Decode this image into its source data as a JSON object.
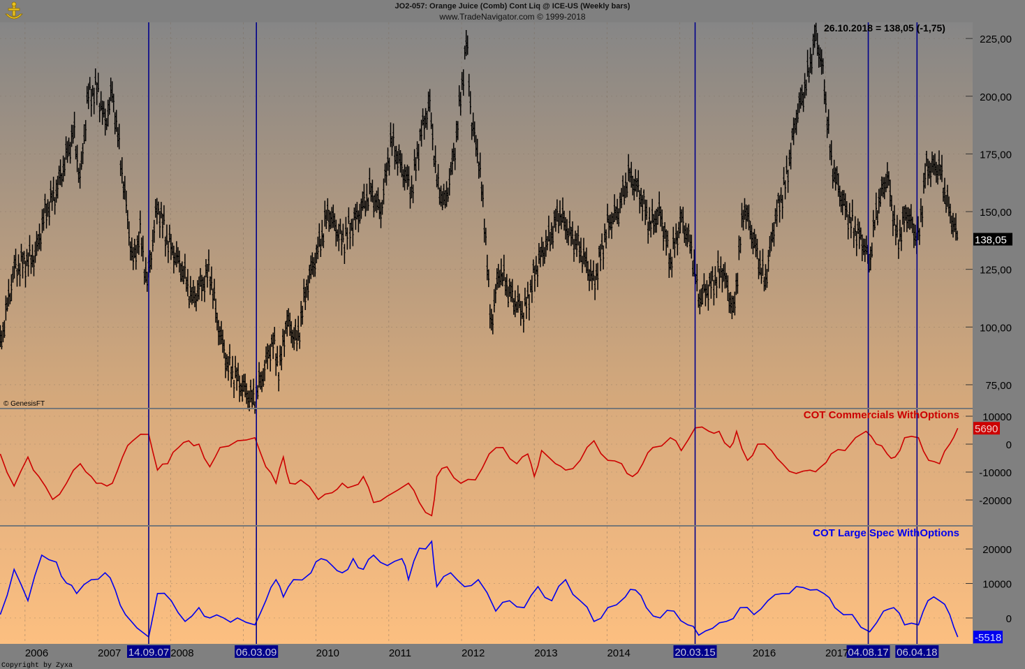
{
  "header": {
    "title": "JO2-057:  Orange Juice (Comb) Cont Liq @ ICE-US  (Weekly bars)",
    "subtitle": "www.TradeNavigator.com © 1999-2018",
    "last_quote": "26.10.2018 = 138,05 (-1,75)",
    "data_credit": "© GenesisFT",
    "copyright": "Copyright by Zyxa",
    "logo": "anchor-logo"
  },
  "colors": {
    "price": "#000000",
    "commercials": "#cc0000",
    "large_spec": "#0000ee",
    "marker_line": "#00008b",
    "axis_bg": "#808080"
  },
  "chart_data": [
    {
      "type": "bar",
      "name": "price",
      "title": "JO2-057:  Orange Juice (Comb) Cont Liq @ ICE-US  (Weekly bars)",
      "ylim": [
        65,
        232
      ],
      "y_ticks": [
        "225,00",
        "200,00",
        "175,00",
        "150,00",
        "125,00",
        "100,00",
        "75,00"
      ],
      "y_tick_values": [
        225,
        200,
        175,
        150,
        125,
        100,
        75
      ],
      "last_value_label": "138,05",
      "points": [
        [
          2005.66,
          92
        ],
        [
          2005.85,
          125
        ],
        [
          2006.14,
          131
        ],
        [
          2006.28,
          150
        ],
        [
          2006.43,
          159
        ],
        [
          2006.67,
          185
        ],
        [
          2006.76,
          163
        ],
        [
          2006.86,
          200
        ],
        [
          2007.0,
          203
        ],
        [
          2007.1,
          188
        ],
        [
          2007.2,
          202
        ],
        [
          2007.34,
          166
        ],
        [
          2007.48,
          128
        ],
        [
          2007.58,
          141
        ],
        [
          2007.68,
          119
        ],
        [
          2007.82,
          153
        ],
        [
          2007.96,
          137
        ],
        [
          2008.16,
          125
        ],
        [
          2008.3,
          112
        ],
        [
          2008.44,
          119
        ],
        [
          2008.54,
          125
        ],
        [
          2008.64,
          103
        ],
        [
          2008.78,
          84
        ],
        [
          2008.97,
          75
        ],
        [
          2009.13,
          68
        ],
        [
          2009.26,
          78
        ],
        [
          2009.4,
          94
        ],
        [
          2009.5,
          81
        ],
        [
          2009.59,
          103
        ],
        [
          2009.74,
          94
        ],
        [
          2009.88,
          119
        ],
        [
          2010.03,
          134
        ],
        [
          2010.17,
          150
        ],
        [
          2010.36,
          137
        ],
        [
          2010.55,
          147
        ],
        [
          2010.75,
          159
        ],
        [
          2010.89,
          150
        ],
        [
          2011.03,
          181
        ],
        [
          2011.18,
          169
        ],
        [
          2011.32,
          159
        ],
        [
          2011.42,
          181
        ],
        [
          2011.56,
          197
        ],
        [
          2011.66,
          163
        ],
        [
          2011.77,
          153
        ],
        [
          2011.9,
          175
        ],
        [
          2011.99,
          200
        ],
        [
          2012.07,
          225
        ],
        [
          2012.14,
          188
        ],
        [
          2012.23,
          175
        ],
        [
          2012.33,
          141
        ],
        [
          2012.4,
          100
        ],
        [
          2012.52,
          125
        ],
        [
          2012.71,
          112
        ],
        [
          2012.86,
          106
        ],
        [
          2013.05,
          128
        ],
        [
          2013.24,
          141
        ],
        [
          2013.34,
          150
        ],
        [
          2013.48,
          141
        ],
        [
          2013.63,
          134
        ],
        [
          2013.82,
          119
        ],
        [
          2014.01,
          144
        ],
        [
          2014.15,
          150
        ],
        [
          2014.3,
          166
        ],
        [
          2014.44,
          159
        ],
        [
          2014.59,
          144
        ],
        [
          2014.73,
          150
        ],
        [
          2014.87,
          128
        ],
        [
          2015.02,
          147
        ],
        [
          2015.16,
          134
        ],
        [
          2015.26,
          112
        ],
        [
          2015.45,
          119
        ],
        [
          2015.59,
          125
        ],
        [
          2015.74,
          106
        ],
        [
          2015.88,
          153
        ],
        [
          2016.02,
          137
        ],
        [
          2016.17,
          119
        ],
        [
          2016.31,
          147
        ],
        [
          2016.46,
          163
        ],
        [
          2016.6,
          191
        ],
        [
          2016.74,
          206
        ],
        [
          2016.87,
          227
        ],
        [
          2016.97,
          210
        ],
        [
          2017.08,
          172
        ],
        [
          2017.22,
          156
        ],
        [
          2017.37,
          144
        ],
        [
          2017.51,
          137
        ],
        [
          2017.61,
          128
        ],
        [
          2017.7,
          150
        ],
        [
          2017.85,
          166
        ],
        [
          2017.99,
          137
        ],
        [
          2018.12,
          150
        ],
        [
          2018.28,
          137
        ],
        [
          2018.38,
          169
        ],
        [
          2018.57,
          169
        ],
        [
          2018.68,
          153
        ],
        [
          2018.82,
          138.05
        ]
      ]
    },
    {
      "type": "line",
      "name": "COT Commercials WithOptions",
      "ylim": [
        -29000,
        12500
      ],
      "y_ticks": [
        "10000",
        "0",
        "-10000",
        "-20000"
      ],
      "y_tick_values": [
        10000,
        0,
        -10000,
        -20000
      ],
      "last_value_label": "5690",
      "points": [
        [
          2005.66,
          -3500
        ],
        [
          2005.85,
          -15000
        ],
        [
          2006.04,
          -4600
        ],
        [
          2006.19,
          -11600
        ],
        [
          2006.38,
          -19800
        ],
        [
          2006.57,
          -14000
        ],
        [
          2006.76,
          -7000
        ],
        [
          2006.91,
          -11600
        ],
        [
          2007.05,
          -14000
        ],
        [
          2007.2,
          -14000
        ],
        [
          2007.34,
          -4600
        ],
        [
          2007.48,
          1200
        ],
        [
          2007.7,
          3500
        ],
        [
          2007.82,
          -9300
        ],
        [
          2007.96,
          -7000
        ],
        [
          2008.11,
          -1200
        ],
        [
          2008.25,
          1200
        ],
        [
          2008.39,
          0
        ],
        [
          2008.54,
          -8100
        ],
        [
          2008.68,
          -1200
        ],
        [
          2008.92,
          1200
        ],
        [
          2009.16,
          2300
        ],
        [
          2009.31,
          -8100
        ],
        [
          2009.45,
          -14000
        ],
        [
          2009.55,
          -4600
        ],
        [
          2009.64,
          -14000
        ],
        [
          2009.79,
          -12800
        ],
        [
          2010.03,
          -19800
        ],
        [
          2010.22,
          -17400
        ],
        [
          2010.36,
          -14000
        ],
        [
          2010.51,
          -15000
        ],
        [
          2010.65,
          -11600
        ],
        [
          2010.79,
          -20900
        ],
        [
          2010.98,
          -18600
        ],
        [
          2011.27,
          -14000
        ],
        [
          2011.42,
          -20900
        ],
        [
          2011.59,
          -25600
        ],
        [
          2011.66,
          -11600
        ],
        [
          2011.8,
          -8100
        ],
        [
          2011.99,
          -14000
        ],
        [
          2012.19,
          -12800
        ],
        [
          2012.38,
          -3500
        ],
        [
          2012.57,
          -1200
        ],
        [
          2012.76,
          -7000
        ],
        [
          2012.91,
          -3500
        ],
        [
          2013.0,
          -11600
        ],
        [
          2013.1,
          -2300
        ],
        [
          2013.29,
          -7000
        ],
        [
          2013.43,
          -9300
        ],
        [
          2013.63,
          -5800
        ],
        [
          2013.82,
          1200
        ],
        [
          2014.01,
          -5800
        ],
        [
          2014.2,
          -7000
        ],
        [
          2014.35,
          -11600
        ],
        [
          2014.49,
          -7000
        ],
        [
          2014.63,
          -1200
        ],
        [
          2014.87,
          2300
        ],
        [
          2015.02,
          -2300
        ],
        [
          2015.21,
          5800
        ],
        [
          2015.4,
          4600
        ],
        [
          2015.54,
          4600
        ],
        [
          2015.69,
          -1200
        ],
        [
          2015.78,
          4600
        ],
        [
          2015.93,
          -5800
        ],
        [
          2016.07,
          0
        ],
        [
          2016.26,
          -2300
        ],
        [
          2016.41,
          -7000
        ],
        [
          2016.6,
          -10500
        ],
        [
          2016.79,
          -9300
        ],
        [
          2016.94,
          -8100
        ],
        [
          2017.08,
          -3500
        ],
        [
          2017.27,
          -2300
        ],
        [
          2017.56,
          4600
        ],
        [
          2017.7,
          0
        ],
        [
          2017.85,
          -3500
        ],
        [
          2017.96,
          -4600
        ],
        [
          2018.09,
          2300
        ],
        [
          2018.28,
          2300
        ],
        [
          2018.42,
          -5800
        ],
        [
          2018.57,
          -7000
        ],
        [
          2018.71,
          0
        ],
        [
          2018.82,
          5690
        ]
      ]
    },
    {
      "type": "line",
      "name": "COT Large Spec WithOptions",
      "ylim": [
        -7500,
        26500
      ],
      "y_ticks": [
        "20000",
        "10000",
        "0"
      ],
      "y_tick_values": [
        20000,
        10000,
        0
      ],
      "last_value_label": "-5518",
      "points": [
        [
          2005.66,
          1000
        ],
        [
          2005.85,
          14100
        ],
        [
          2006.04,
          5000
        ],
        [
          2006.23,
          18200
        ],
        [
          2006.43,
          16200
        ],
        [
          2006.57,
          10100
        ],
        [
          2006.71,
          7100
        ],
        [
          2006.91,
          11100
        ],
        [
          2007.1,
          13100
        ],
        [
          2007.24,
          8100
        ],
        [
          2007.38,
          1000
        ],
        [
          2007.7,
          -5500
        ],
        [
          2007.82,
          7100
        ],
        [
          2008.01,
          5000
        ],
        [
          2008.2,
          -1000
        ],
        [
          2008.39,
          3000
        ],
        [
          2008.54,
          0
        ],
        [
          2008.73,
          0
        ],
        [
          2008.92,
          0
        ],
        [
          2009.16,
          -2000
        ],
        [
          2009.31,
          5000
        ],
        [
          2009.45,
          11100
        ],
        [
          2009.55,
          6100
        ],
        [
          2009.69,
          11100
        ],
        [
          2009.93,
          13100
        ],
        [
          2010.07,
          17200
        ],
        [
          2010.22,
          15200
        ],
        [
          2010.36,
          13100
        ],
        [
          2010.51,
          17200
        ],
        [
          2010.65,
          14100
        ],
        [
          2010.79,
          18200
        ],
        [
          2010.98,
          15200
        ],
        [
          2011.18,
          17200
        ],
        [
          2011.27,
          11100
        ],
        [
          2011.42,
          20200
        ],
        [
          2011.59,
          22200
        ],
        [
          2011.66,
          9100
        ],
        [
          2011.85,
          13100
        ],
        [
          2012.04,
          9100
        ],
        [
          2012.23,
          11100
        ],
        [
          2012.47,
          2000
        ],
        [
          2012.66,
          5000
        ],
        [
          2012.86,
          3000
        ],
        [
          2013.05,
          9100
        ],
        [
          2013.24,
          5000
        ],
        [
          2013.43,
          11100
        ],
        [
          2013.63,
          5000
        ],
        [
          2013.82,
          -1000
        ],
        [
          2014.01,
          3000
        ],
        [
          2014.25,
          6100
        ],
        [
          2014.39,
          8100
        ],
        [
          2014.54,
          3000
        ],
        [
          2014.73,
          0
        ],
        [
          2014.92,
          2000
        ],
        [
          2015.11,
          -2000
        ],
        [
          2015.26,
          -5000
        ],
        [
          2015.45,
          -3000
        ],
        [
          2015.64,
          -1000
        ],
        [
          2015.83,
          3000
        ],
        [
          2016.02,
          1000
        ],
        [
          2016.21,
          5000
        ],
        [
          2016.41,
          7100
        ],
        [
          2016.6,
          9100
        ],
        [
          2016.79,
          8100
        ],
        [
          2016.98,
          7100
        ],
        [
          2017.13,
          3000
        ],
        [
          2017.37,
          1000
        ],
        [
          2017.61,
          -4000
        ],
        [
          2017.8,
          2000
        ],
        [
          2017.94,
          3000
        ],
        [
          2018.09,
          -2000
        ],
        [
          2018.28,
          -2000
        ],
        [
          2018.41,
          5000
        ],
        [
          2018.57,
          5000
        ],
        [
          2018.71,
          1000
        ],
        [
          2018.82,
          -5518
        ]
      ]
    }
  ],
  "x_axis": {
    "years": [
      "2006",
      "2007",
      "2008",
      "2010",
      "2011",
      "2012",
      "2013",
      "2014",
      "2016",
      "2017"
    ],
    "year_values": [
      2006,
      2007,
      2008,
      2010,
      2011,
      2012,
      2013,
      2014,
      2016,
      2017
    ]
  },
  "markers": [
    {
      "label": "14.09.07",
      "t": 2007.7
    },
    {
      "label": "06.03.09",
      "t": 2009.18
    },
    {
      "label": "20.03.15",
      "t": 2015.21
    },
    {
      "label": "04.08.17",
      "t": 2017.59
    },
    {
      "label": "06.04.18",
      "t": 2018.26
    }
  ]
}
